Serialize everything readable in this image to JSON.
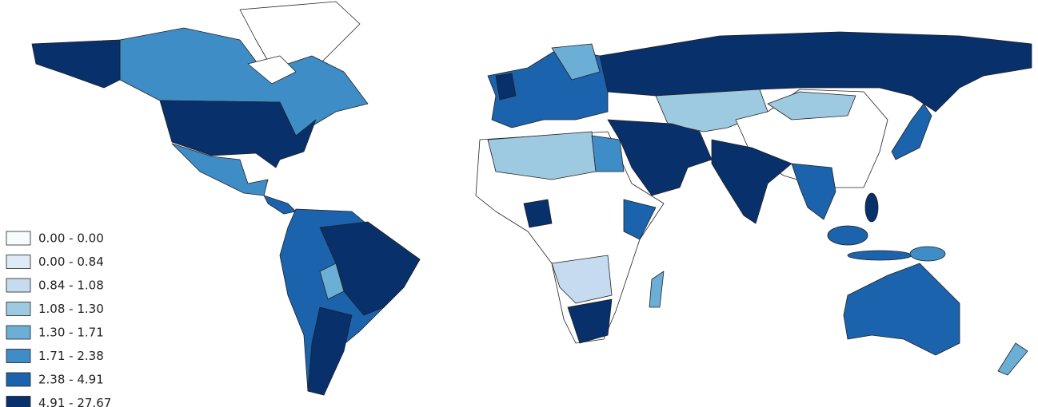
{
  "legend": [
    {
      "label": "0.00 - 0.00",
      "color": "#f7fbff"
    },
    {
      "label": "0.00 - 0.84",
      "color": "#deebf7"
    },
    {
      "label": "0.84 - 1.08",
      "color": "#c6dbef"
    },
    {
      "label": "1.08 - 1.30",
      "color": "#9ecae1"
    },
    {
      "label": "1.30 - 1.71",
      "color": "#6baed6"
    },
    {
      "label": "1.71 - 2.38",
      "color": "#3f8dc7"
    },
    {
      "label": "2.38 - 4.91",
      "color": "#1c63ad"
    },
    {
      "label": "4.91 - 27.67",
      "color": "#08306b"
    }
  ]
}
